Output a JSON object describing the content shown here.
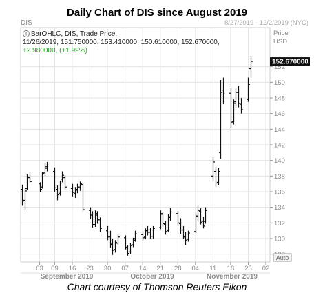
{
  "title": "Daily Chart of DIS since August 2019",
  "caption": "Chart courtesy of Thomson Reuters Eikon",
  "header": {
    "symbol": "DIS",
    "date_range": "8/27/2019 - 12/2/2019 (NYC)",
    "legend_line1": "BarOHLC, DIS, Trade Price,",
    "legend_line2": "11/26/2019, 151.750000, 153.410000, 150.610000, 152.670000,",
    "legend_line3": "+2.980000, (+1.99%)"
  },
  "axis": {
    "price_label": "Price",
    "currency_label": "USD",
    "last_price": "152.670000",
    "auto_label": "Auto",
    "month_labels": [
      "September 2019",
      "October 2019",
      "November 2019"
    ]
  },
  "colors": {
    "bars": "#111111",
    "grid": "#e3e3e3",
    "change_positive": "#1f9a1f",
    "last_price_bg": "#111111"
  },
  "chart_data": {
    "type": "bar",
    "subtype": "ohlc",
    "ylim": [
      127,
      157
    ],
    "grid": true,
    "yticks": [
      128,
      130,
      132,
      134,
      136,
      138,
      140,
      142,
      144,
      146,
      148,
      150,
      152
    ],
    "xticks": [
      {
        "label": "03",
        "date": "2019-09-03"
      },
      {
        "label": "09",
        "date": "2019-09-09"
      },
      {
        "label": "16",
        "date": "2019-09-16"
      },
      {
        "label": "23",
        "date": "2019-09-23"
      },
      {
        "label": "30",
        "date": "2019-09-30"
      },
      {
        "label": "07",
        "date": "2019-10-07"
      },
      {
        "label": "14",
        "date": "2019-10-14"
      },
      {
        "label": "21",
        "date": "2019-10-21"
      },
      {
        "label": "28",
        "date": "2019-10-28"
      },
      {
        "label": "04",
        "date": "2019-11-04"
      },
      {
        "label": "11",
        "date": "2019-11-11"
      },
      {
        "label": "18",
        "date": "2019-11-18"
      },
      {
        "label": "25",
        "date": "2019-11-25"
      },
      {
        "label": "02",
        "date": "2019-12-02"
      }
    ],
    "bars": [
      {
        "date": "2019-08-27",
        "o": 136.3,
        "h": 136.9,
        "l": 134.2,
        "c": 134.8
      },
      {
        "date": "2019-08-28",
        "o": 134.9,
        "h": 136.5,
        "l": 133.6,
        "c": 136.1
      },
      {
        "date": "2019-08-29",
        "o": 136.4,
        "h": 138.2,
        "l": 136.2,
        "c": 137.9
      },
      {
        "date": "2019-08-30",
        "o": 137.8,
        "h": 138.6,
        "l": 137.1,
        "c": 137.3
      },
      {
        "date": "2019-09-03",
        "o": 137.0,
        "h": 137.2,
        "l": 136.0,
        "c": 136.3
      },
      {
        "date": "2019-09-04",
        "o": 136.6,
        "h": 138.5,
        "l": 136.4,
        "c": 138.3
      },
      {
        "date": "2019-09-05",
        "o": 138.4,
        "h": 139.6,
        "l": 138.0,
        "c": 139.2
      },
      {
        "date": "2019-09-06",
        "o": 139.0,
        "h": 139.8,
        "l": 138.6,
        "c": 139.4
      },
      {
        "date": "2019-09-09",
        "o": 138.6,
        "h": 139.1,
        "l": 136.0,
        "c": 136.5
      },
      {
        "date": "2019-09-10",
        "o": 136.3,
        "h": 136.8,
        "l": 134.9,
        "c": 135.6
      },
      {
        "date": "2019-09-11",
        "o": 135.8,
        "h": 137.4,
        "l": 135.5,
        "c": 137.1
      },
      {
        "date": "2019-09-12",
        "o": 137.6,
        "h": 138.6,
        "l": 137.2,
        "c": 138.1
      },
      {
        "date": "2019-09-13",
        "o": 137.8,
        "h": 138.1,
        "l": 136.2,
        "c": 136.6
      },
      {
        "date": "2019-09-16",
        "o": 136.4,
        "h": 137.0,
        "l": 135.4,
        "c": 135.9
      },
      {
        "date": "2019-09-17",
        "o": 135.8,
        "h": 136.6,
        "l": 135.2,
        "c": 136.3
      },
      {
        "date": "2019-09-18",
        "o": 136.2,
        "h": 137.0,
        "l": 135.8,
        "c": 136.6
      },
      {
        "date": "2019-09-19",
        "o": 136.6,
        "h": 137.3,
        "l": 136.1,
        "c": 137.0
      },
      {
        "date": "2019-09-20",
        "o": 136.9,
        "h": 137.2,
        "l": 133.4,
        "c": 133.7
      },
      {
        "date": "2019-09-23",
        "o": 133.6,
        "h": 134.0,
        "l": 132.5,
        "c": 133.0
      },
      {
        "date": "2019-09-24",
        "o": 133.0,
        "h": 133.5,
        "l": 131.4,
        "c": 131.8
      },
      {
        "date": "2019-09-25",
        "o": 131.8,
        "h": 133.6,
        "l": 131.5,
        "c": 133.2
      },
      {
        "date": "2019-09-26",
        "o": 133.0,
        "h": 133.5,
        "l": 131.9,
        "c": 132.4
      },
      {
        "date": "2019-09-27",
        "o": 132.4,
        "h": 132.7,
        "l": 130.8,
        "c": 131.3
      },
      {
        "date": "2019-09-30",
        "o": 131.0,
        "h": 131.6,
        "l": 129.8,
        "c": 130.2
      },
      {
        "date": "2019-10-01",
        "o": 130.2,
        "h": 131.0,
        "l": 128.8,
        "c": 129.3
      },
      {
        "date": "2019-10-02",
        "o": 129.2,
        "h": 130.0,
        "l": 127.9,
        "c": 128.5
      },
      {
        "date": "2019-10-03",
        "o": 128.6,
        "h": 129.8,
        "l": 128.2,
        "c": 129.5
      },
      {
        "date": "2019-10-04",
        "o": 129.4,
        "h": 130.5,
        "l": 129.1,
        "c": 130.2
      },
      {
        "date": "2019-10-07",
        "o": 130.1,
        "h": 130.4,
        "l": 128.6,
        "c": 128.9
      },
      {
        "date": "2019-10-08",
        "o": 128.8,
        "h": 129.2,
        "l": 127.8,
        "c": 128.1
      },
      {
        "date": "2019-10-09",
        "o": 128.3,
        "h": 129.4,
        "l": 128.0,
        "c": 129.1
      },
      {
        "date": "2019-10-10",
        "o": 129.2,
        "h": 130.1,
        "l": 128.9,
        "c": 129.8
      },
      {
        "date": "2019-10-11",
        "o": 130.0,
        "h": 131.0,
        "l": 129.6,
        "c": 130.6
      },
      {
        "date": "2019-10-14",
        "o": 130.5,
        "h": 130.9,
        "l": 129.7,
        "c": 130.1
      },
      {
        "date": "2019-10-15",
        "o": 130.2,
        "h": 131.3,
        "l": 129.9,
        "c": 131.0
      },
      {
        "date": "2019-10-16",
        "o": 131.0,
        "h": 131.6,
        "l": 130.4,
        "c": 130.8
      },
      {
        "date": "2019-10-17",
        "o": 130.8,
        "h": 131.4,
        "l": 129.9,
        "c": 130.3
      },
      {
        "date": "2019-10-18",
        "o": 130.3,
        "h": 131.6,
        "l": 130.0,
        "c": 131.3
      },
      {
        "date": "2019-10-21",
        "o": 131.4,
        "h": 133.6,
        "l": 131.2,
        "c": 133.2
      },
      {
        "date": "2019-10-22",
        "o": 133.1,
        "h": 133.4,
        "l": 131.5,
        "c": 131.9
      },
      {
        "date": "2019-10-23",
        "o": 131.8,
        "h": 132.3,
        "l": 130.5,
        "c": 130.9
      },
      {
        "date": "2019-10-24",
        "o": 131.0,
        "h": 133.1,
        "l": 130.8,
        "c": 132.8
      },
      {
        "date": "2019-10-25",
        "o": 132.7,
        "h": 133.9,
        "l": 132.3,
        "c": 133.4
      },
      {
        "date": "2019-10-28",
        "o": 133.2,
        "h": 133.5,
        "l": 131.6,
        "c": 132.0
      },
      {
        "date": "2019-10-29",
        "o": 131.9,
        "h": 132.6,
        "l": 130.6,
        "c": 131.1
      },
      {
        "date": "2019-10-30",
        "o": 131.1,
        "h": 131.6,
        "l": 129.9,
        "c": 130.2
      },
      {
        "date": "2019-10-31",
        "o": 130.2,
        "h": 130.8,
        "l": 129.2,
        "c": 129.8
      },
      {
        "date": "2019-11-01",
        "o": 129.9,
        "h": 131.0,
        "l": 129.6,
        "c": 130.7
      },
      {
        "date": "2019-11-04",
        "o": 130.9,
        "h": 133.3,
        "l": 130.7,
        "c": 132.9
      },
      {
        "date": "2019-11-05",
        "o": 132.8,
        "h": 134.2,
        "l": 132.3,
        "c": 133.6
      },
      {
        "date": "2019-11-06",
        "o": 133.5,
        "h": 133.9,
        "l": 131.8,
        "c": 132.1
      },
      {
        "date": "2019-11-07",
        "o": 132.2,
        "h": 132.8,
        "l": 131.3,
        "c": 131.6
      },
      {
        "date": "2019-11-08",
        "o": 132.2,
        "h": 134.0,
        "l": 131.9,
        "c": 133.6
      },
      {
        "date": "2019-11-11",
        "o": 138.0,
        "h": 140.4,
        "l": 137.4,
        "c": 139.8
      },
      {
        "date": "2019-11-12",
        "o": 138.6,
        "h": 139.2,
        "l": 136.6,
        "c": 137.1
      },
      {
        "date": "2019-11-13",
        "o": 137.2,
        "h": 139.0,
        "l": 136.8,
        "c": 138.6
      },
      {
        "date": "2019-11-14",
        "o": 141.0,
        "h": 150.3,
        "l": 140.2,
        "c": 148.7
      },
      {
        "date": "2019-11-15",
        "o": 149.0,
        "h": 150.6,
        "l": 147.2,
        "c": 148.5
      },
      {
        "date": "2019-11-18",
        "o": 148.6,
        "h": 149.3,
        "l": 144.2,
        "c": 144.9
      },
      {
        "date": "2019-11-19",
        "o": 145.0,
        "h": 147.8,
        "l": 144.6,
        "c": 147.3
      },
      {
        "date": "2019-11-20",
        "o": 147.5,
        "h": 149.2,
        "l": 146.7,
        "c": 148.7
      },
      {
        "date": "2019-11-21",
        "o": 148.7,
        "h": 149.5,
        "l": 146.8,
        "c": 147.3
      },
      {
        "date": "2019-11-22",
        "o": 147.2,
        "h": 148.0,
        "l": 146.0,
        "c": 146.5
      },
      {
        "date": "2019-11-25",
        "o": 147.8,
        "h": 150.6,
        "l": 147.5,
        "c": 149.7
      },
      {
        "date": "2019-11-26",
        "o": 151.75,
        "h": 153.41,
        "l": 150.61,
        "c": 152.67
      }
    ]
  }
}
